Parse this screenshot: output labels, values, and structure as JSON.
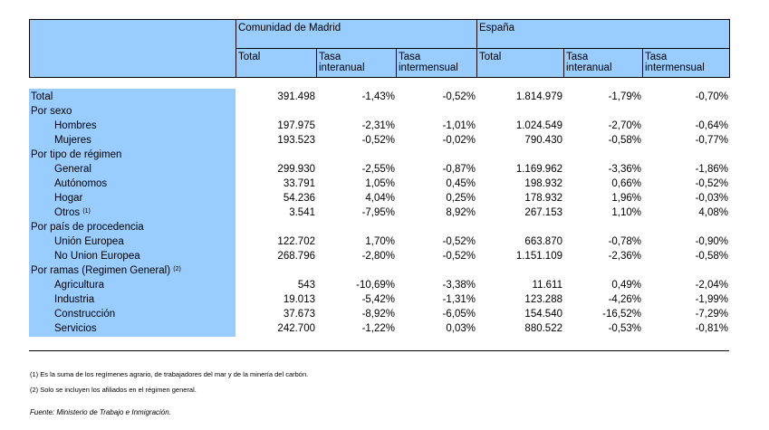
{
  "header": {
    "group_madrid": "Comunidad de Madrid",
    "group_espana": "España",
    "col_total": "Total",
    "col_interanual": [
      "Tasa",
      "interanual"
    ],
    "col_intermensual": [
      "Tasa",
      "intermensual"
    ]
  },
  "rows": [
    {
      "label": "Total",
      "indent": false,
      "values": [
        "391.498",
        "-1,43%",
        "-0,52%",
        "1.814.979",
        "-1,79%",
        "-0,70%"
      ]
    },
    {
      "label": "Por sexo",
      "indent": false,
      "values": []
    },
    {
      "label": "Hombres",
      "indent": true,
      "values": [
        "197.975",
        "-2,31%",
        "-1,01%",
        "1.024.549",
        "-2,70%",
        "-0,64%"
      ]
    },
    {
      "label": "Mujeres",
      "indent": true,
      "values": [
        "193.523",
        "-0,52%",
        "-0,02%",
        "790.430",
        "-0,58%",
        "-0,77%"
      ]
    },
    {
      "label": "Por tipo de régimen",
      "indent": false,
      "values": []
    },
    {
      "label": "General",
      "indent": true,
      "values": [
        "299.930",
        "-2,55%",
        "-0,87%",
        "1.169.962",
        "-3,36%",
        "-1,86%"
      ]
    },
    {
      "label": "Autónomos",
      "indent": true,
      "values": [
        "33.791",
        "1,05%",
        "0,45%",
        "198.932",
        "0,66%",
        "-0,52%"
      ]
    },
    {
      "label": "Hogar",
      "indent": true,
      "values": [
        "54.236",
        "4,04%",
        "0,25%",
        "178.932",
        "1,96%",
        "-0,03%"
      ]
    },
    {
      "label": "Otros",
      "sup": "(1)",
      "indent": true,
      "values": [
        "3.541",
        "-7,95%",
        "8,92%",
        "267.153",
        "1,10%",
        "4,08%"
      ]
    },
    {
      "label": "Por país de procedencia",
      "indent": false,
      "values": []
    },
    {
      "label": "Unión Europea",
      "indent": true,
      "values": [
        "122.702",
        "1,70%",
        "-0,52%",
        "663.870",
        "-0,78%",
        "-0,90%"
      ]
    },
    {
      "label": "No Union Europea",
      "indent": true,
      "values": [
        "268.796",
        "-2,80%",
        "-0,52%",
        "1.151.109",
        "-2,36%",
        "-0,58%"
      ]
    },
    {
      "label": "Por ramas (Regimen General)",
      "sup": "(2)",
      "indent": false,
      "values": []
    },
    {
      "label": "Agricultura",
      "indent": true,
      "values": [
        "543",
        "-10,69%",
        "-3,38%",
        "11.611",
        "0,49%",
        "-2,04%"
      ]
    },
    {
      "label": "Industria",
      "indent": true,
      "values": [
        "19.013",
        "-5,42%",
        "-1,31%",
        "123.288",
        "-4,26%",
        "-1,99%"
      ]
    },
    {
      "label": "Construcción",
      "indent": true,
      "values": [
        "37.673",
        "-8,92%",
        "-6,05%",
        "154.540",
        "-16,52%",
        "-7,29%"
      ]
    },
    {
      "label": "Servicios",
      "indent": true,
      "values": [
        "242.700",
        "-1,22%",
        "0,03%",
        "880.522",
        "-0,53%",
        "-0,81%"
      ]
    }
  ],
  "notes": [
    "(1) Es la suma de los regímenes  agrario, de trabajadores del mar y de la minería del carbón.",
    "(2) Solo se incluyen los afiliados en el régimen general."
  ],
  "source": "Fuente: Ministerio de Trabajo e Inmigración.",
  "colors": {
    "header_fill": "#99ccff"
  }
}
